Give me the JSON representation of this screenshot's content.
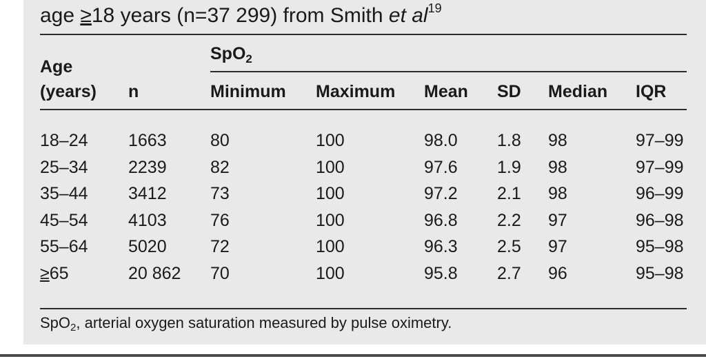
{
  "caption": {
    "before_geq": "age ",
    "geq": "≥",
    "after_geq": "18 years (n=37 299) from Smith ",
    "italic": "et al",
    "ref": "19"
  },
  "header": {
    "age_line1": "Age",
    "age_line2": "(years)",
    "n": "n",
    "spo2_main": "SpO",
    "spo2_sub": "2",
    "min": "Minimum",
    "max": "Maximum",
    "mean": "Mean",
    "sd": "SD",
    "median": "Median",
    "iqr": "IQR"
  },
  "rows": [
    {
      "age": "18–24",
      "n": "1663",
      "min": "80",
      "max": "100",
      "mean": "98.0",
      "sd": "1.8",
      "median": "98",
      "iqr": "97–99"
    },
    {
      "age": "25–34",
      "n": "2239",
      "min": "82",
      "max": "100",
      "mean": "97.6",
      "sd": "1.9",
      "median": "98",
      "iqr": "97–99"
    },
    {
      "age": "35–44",
      "n": "3412",
      "min": "73",
      "max": "100",
      "mean": "97.2",
      "sd": "2.1",
      "median": "98",
      "iqr": "96–99"
    },
    {
      "age": "45–54",
      "n": "4103",
      "min": "76",
      "max": "100",
      "mean": "96.8",
      "sd": "2.2",
      "median": "97",
      "iqr": "96–98"
    },
    {
      "age": "55–64",
      "n": "5020",
      "min": "72",
      "max": "100",
      "mean": "96.3",
      "sd": "2.5",
      "median": "97",
      "iqr": "95–98"
    },
    {
      "age": "≥65",
      "n": "20 862",
      "min": "70",
      "max": "100",
      "mean": "95.8",
      "sd": "2.7",
      "median": "96",
      "iqr": "95–98"
    }
  ],
  "footnote": {
    "main": "SpO",
    "sub": "2",
    "rest": ", arterial oxygen saturation measured by pulse oximetry."
  }
}
